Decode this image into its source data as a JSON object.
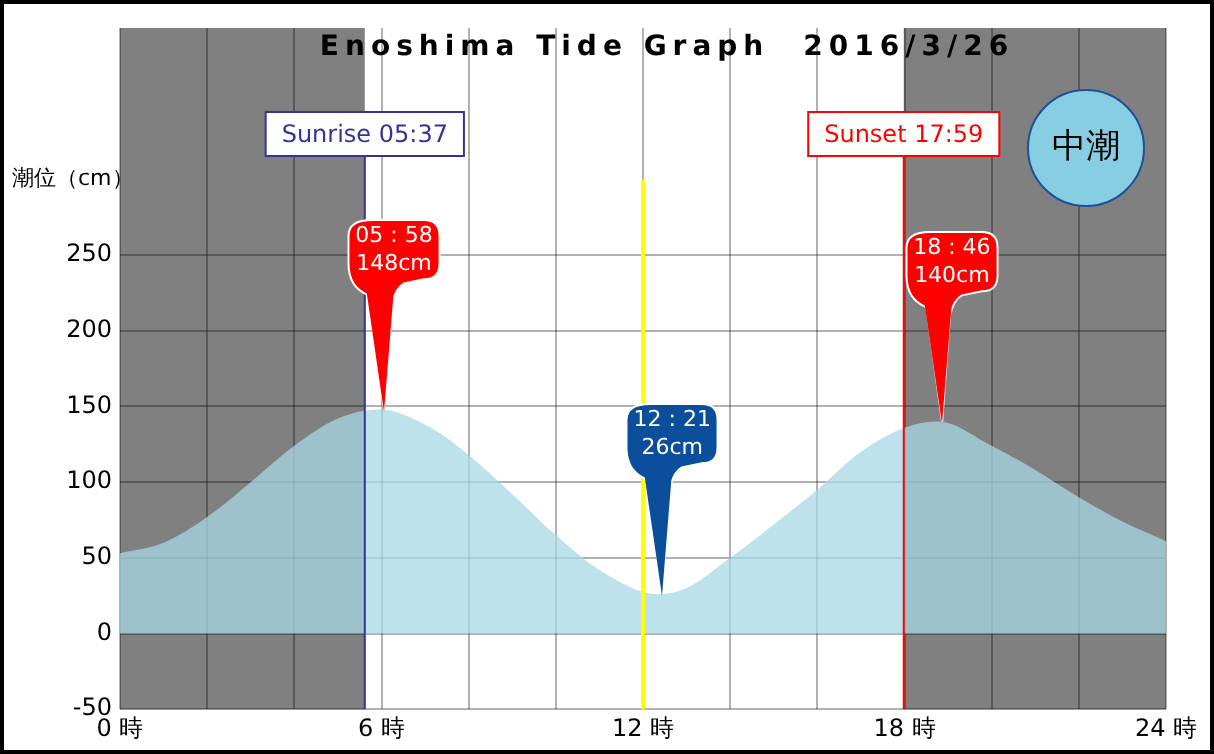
{
  "chart_data": {
    "type": "area",
    "title": "Enoshima Tide Graph　2016/3/26",
    "ylabel": "潮位（cm）",
    "x": [
      0,
      1,
      2,
      3,
      4,
      5,
      5.967,
      7,
      8,
      9,
      10,
      11,
      12.35,
      13,
      14,
      15,
      16,
      17,
      18,
      18.767,
      20,
      21,
      22,
      23,
      24
    ],
    "series": [
      {
        "color": "#a8d8e4",
        "values": [
          53,
          60,
          77,
          100,
          124,
          142,
          148,
          138,
          118,
          92,
          65,
          42,
          26,
          30,
          50,
          72,
          95,
          120,
          136,
          140,
          124,
          108,
          90,
          74,
          61
        ]
      }
    ],
    "xlim": [
      0,
      24
    ],
    "xticks": [
      {
        "value": 0,
        "label": "0 時"
      },
      {
        "value": 2,
        "label": null
      },
      {
        "value": 4,
        "label": null
      },
      {
        "value": 6,
        "label": "6 時"
      },
      {
        "value": 8,
        "label": null
      },
      {
        "value": 10,
        "label": null
      },
      {
        "value": 12,
        "label": "12 時"
      },
      {
        "value": 14,
        "label": null
      },
      {
        "value": 16,
        "label": null
      },
      {
        "value": 18,
        "label": "18 時"
      },
      {
        "value": 20,
        "label": null
      },
      {
        "value": 22,
        "label": null
      },
      {
        "value": 24,
        "label": "24 時"
      }
    ],
    "ylim": [
      -50,
      400
    ],
    "yticks": [
      -50,
      0,
      50,
      100,
      150,
      200,
      250
    ],
    "grid": true,
    "bands": [
      {
        "axis": "x",
        "from": 0,
        "to": 5.6167,
        "color": "#808080"
      },
      {
        "axis": "x",
        "from": 17.9833,
        "to": 24,
        "color": "#808080"
      }
    ],
    "ref_lines": [
      {
        "axis": "x",
        "value": 5.6167,
        "color": "#333399"
      },
      {
        "axis": "x",
        "value": 17.9833,
        "color": "#ff0000"
      },
      {
        "axis": "x",
        "value": 12,
        "color": "#ffff00"
      }
    ],
    "annotations": [
      {
        "text": "Sunrise 05:37",
        "x": 5.6167,
        "y": 330
      },
      {
        "text": "Sunset 17:59",
        "x": 17.9833,
        "y": 330
      },
      {
        "text": "05 : 58\n148cm",
        "x": 5.967,
        "y": 148
      },
      {
        "text": "12 : 21\n26cm",
        "x": 12.35,
        "y": 26
      },
      {
        "text": "18 : 46\n140cm",
        "x": 18.767,
        "y": 140
      },
      "中潮"
    ]
  }
}
